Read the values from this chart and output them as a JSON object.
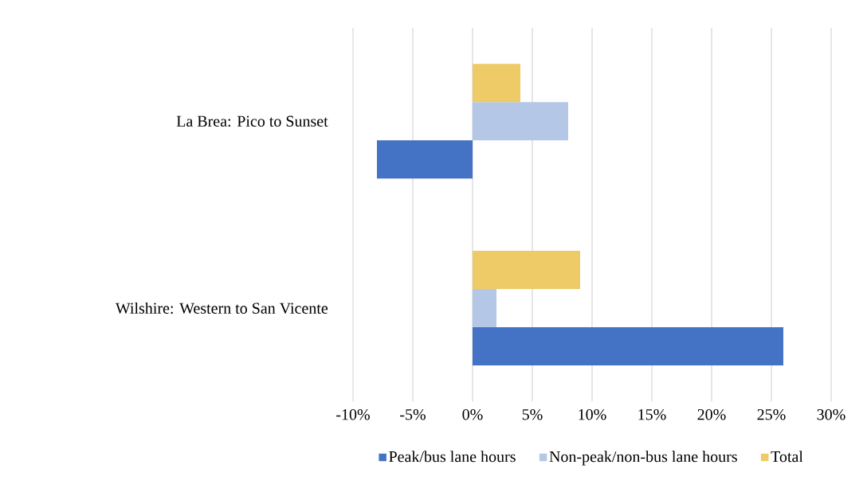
{
  "chart_data": {
    "type": "bar",
    "orientation": "horizontal",
    "categories": [
      "La Brea: Pico to Sunset",
      "Wilshire: Western to San Vicente"
    ],
    "series": [
      {
        "name": "Peak/bus lane hours",
        "color": "#4472c4",
        "values": [
          -8,
          26
        ]
      },
      {
        "name": "Non-peak/non-bus lane hours",
        "color": "#b4c7e7",
        "values": [
          8,
          2
        ]
      },
      {
        "name": "Total",
        "color": "#eecb66",
        "values": [
          4,
          9
        ]
      }
    ],
    "xlim": [
      -10,
      30
    ],
    "xticks": [
      {
        "value": -10,
        "label": "-10%"
      },
      {
        "value": -5,
        "label": "-5%"
      },
      {
        "value": 0,
        "label": "0%"
      },
      {
        "value": 5,
        "label": "5%"
      },
      {
        "value": 10,
        "label": "10%"
      },
      {
        "value": 15,
        "label": "15%"
      },
      {
        "value": 20,
        "label": "20%"
      },
      {
        "value": 25,
        "label": "25%"
      },
      {
        "value": 30,
        "label": "30%"
      }
    ],
    "grid": "x",
    "legend": "bottom"
  }
}
